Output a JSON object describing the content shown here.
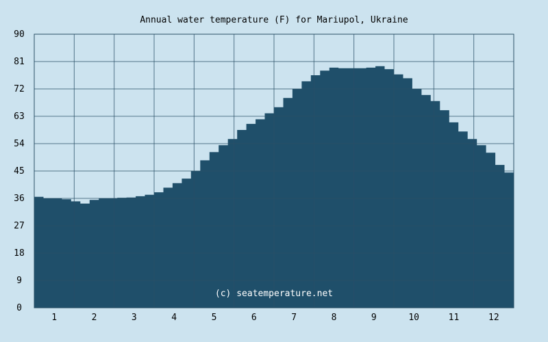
{
  "colors": {
    "background": "#cce3ef",
    "fill": "#1f4f6a",
    "grid": "#2a4f66"
  },
  "chart_data": {
    "type": "area",
    "title": "Annual water temperature (F) for Mariupol, Ukraine",
    "xlabel": "",
    "ylabel": "",
    "ylim": [
      0,
      90
    ],
    "yticks": [
      "0",
      "9",
      "18",
      "27",
      "36",
      "45",
      "54",
      "63",
      "72",
      "81",
      "90"
    ],
    "xtick_labels": [
      "1",
      "2",
      "3",
      "4",
      "5",
      "6",
      "7",
      "8",
      "9",
      "10",
      "11",
      "12"
    ],
    "grid": true,
    "annotation": "(c) seatemperature.net",
    "x": [
      1,
      8,
      15,
      22,
      29,
      36,
      43,
      50,
      57,
      64,
      71,
      78,
      85,
      92,
      99,
      106,
      113,
      120,
      127,
      134,
      141,
      148,
      155,
      162,
      169,
      176,
      183,
      190,
      197,
      204,
      211,
      218,
      225,
      232,
      239,
      246,
      253,
      260,
      267,
      274,
      281,
      288,
      295,
      302,
      309,
      316,
      323,
      330,
      337,
      344,
      351,
      358,
      365
    ],
    "values": [
      36.5,
      36.0,
      36.0,
      35.7,
      35.0,
      34.3,
      35.5,
      36.0,
      36.0,
      36.2,
      36.3,
      36.7,
      37.2,
      38.0,
      39.5,
      41.0,
      42.5,
      45.0,
      48.5,
      51.2,
      53.5,
      55.5,
      58.5,
      60.5,
      62.0,
      64.0,
      66.0,
      69.0,
      72.0,
      74.5,
      76.5,
      78.0,
      79.0,
      78.8,
      78.8,
      78.8,
      79.0,
      79.5,
      78.5,
      76.8,
      75.5,
      72.0,
      70.0,
      68.0,
      65.0,
      61.0,
      58.0,
      55.5,
      53.5,
      51.0,
      47.0,
      44.5,
      42.0
    ]
  }
}
